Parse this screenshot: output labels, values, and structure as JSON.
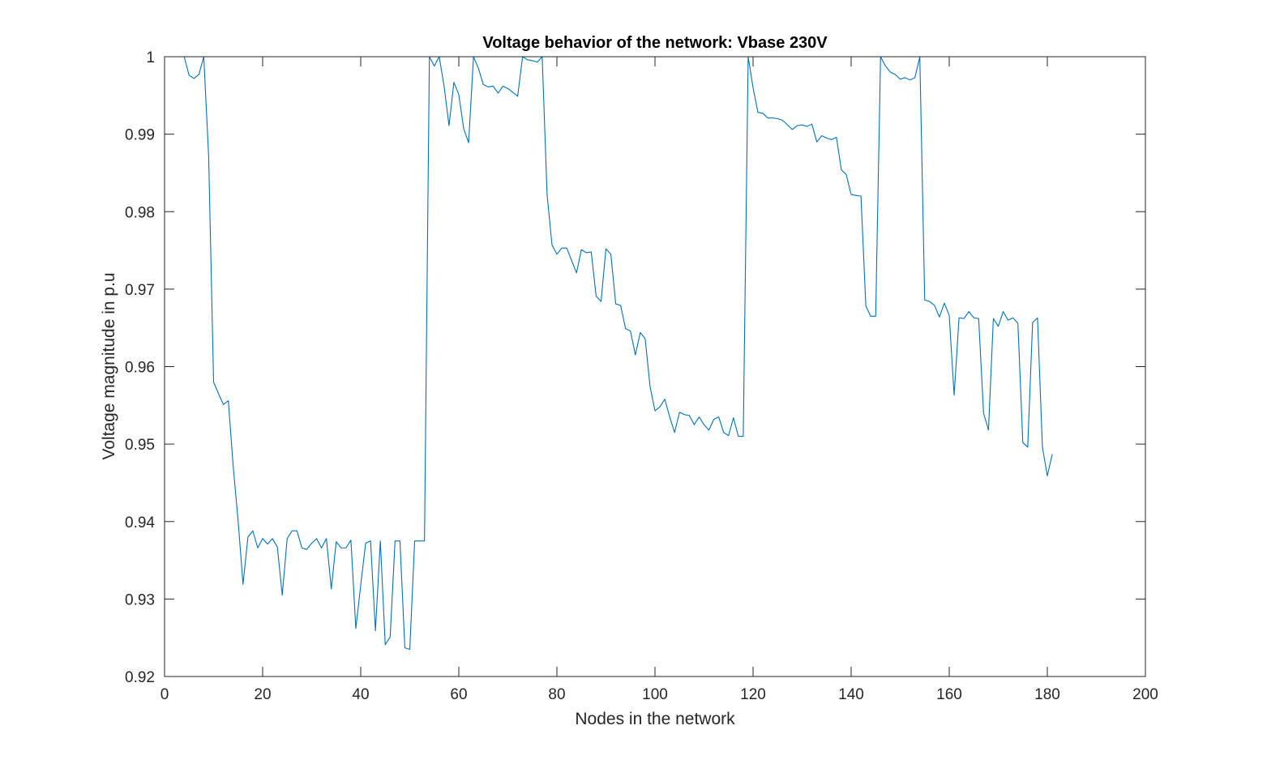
{
  "chart_data": {
    "type": "line",
    "title": "Voltage behavior of the network: Vbase 230V",
    "xlabel": "Nodes in the network",
    "ylabel": "Voltage magnitude in p.u",
    "xlim": [
      0,
      200
    ],
    "ylim": [
      0.92,
      1.0
    ],
    "xticks": [
      0,
      20,
      40,
      60,
      80,
      100,
      120,
      140,
      160,
      180,
      200
    ],
    "xtick_labels": [
      "0",
      "20",
      "40",
      "60",
      "80",
      "100",
      "120",
      "140",
      "160",
      "180",
      "200"
    ],
    "yticks": [
      0.92,
      0.93,
      0.94,
      0.95,
      0.96,
      0.97,
      0.98,
      0.99,
      1.0
    ],
    "ytick_labels": [
      "0.92",
      "0.93",
      "0.94",
      "0.95",
      "0.96",
      "0.97",
      "0.98",
      "0.99",
      "1"
    ],
    "grid": false,
    "line_color": "#0072BD",
    "axis_color": "#262626",
    "series": [
      {
        "x": [
          1,
          2,
          3,
          4,
          5,
          6,
          7,
          8,
          9,
          10,
          11,
          12,
          13,
          14,
          15,
          16,
          17,
          18,
          19,
          20,
          21,
          22,
          23,
          24,
          25,
          26,
          27,
          28,
          29,
          30,
          31,
          32,
          33,
          34,
          35,
          36,
          37,
          38,
          39,
          40,
          41,
          42,
          43,
          44,
          45,
          46,
          47,
          48,
          49,
          50,
          51,
          52,
          53,
          54,
          55,
          56,
          57,
          58,
          59,
          60,
          61,
          62,
          63,
          64,
          65,
          66,
          67,
          68,
          69,
          70,
          71,
          72,
          73,
          74,
          75,
          76,
          77,
          78,
          79,
          80,
          81,
          82,
          83,
          84,
          85,
          86,
          87,
          88,
          89,
          90,
          91,
          92,
          93,
          94,
          95,
          96,
          97,
          98,
          99,
          100,
          101,
          102,
          103,
          104,
          105,
          106,
          107,
          108,
          109,
          110,
          111,
          112,
          113,
          114,
          115,
          116,
          117,
          118,
          119,
          120,
          121,
          122,
          123,
          124,
          125,
          126,
          127,
          128,
          129,
          130,
          131,
          132,
          133,
          134,
          135,
          136,
          137,
          138,
          139,
          140,
          141,
          142,
          143,
          144,
          145,
          146,
          147,
          148,
          149,
          150,
          151,
          152,
          153,
          154,
          155,
          156,
          157,
          158,
          159,
          160,
          161,
          162,
          163,
          164,
          165,
          166,
          167,
          168,
          169,
          170,
          171,
          172,
          173,
          174,
          175,
          176,
          177,
          178,
          179,
          180,
          181
        ],
        "y": [
          1.0,
          1.0,
          1.0,
          1.0,
          0.9976,
          0.9972,
          0.9977,
          1.0,
          0.987,
          0.958,
          0.9565,
          0.9551,
          0.9556,
          0.9471,
          0.9401,
          0.9319,
          0.938,
          0.9388,
          0.9366,
          0.9378,
          0.9371,
          0.9378,
          0.9367,
          0.9305,
          0.9378,
          0.9388,
          0.9388,
          0.9366,
          0.9364,
          0.9372,
          0.9378,
          0.9366,
          0.9378,
          0.9313,
          0.9374,
          0.9366,
          0.9366,
          0.9376,
          0.9262,
          0.9318,
          0.9372,
          0.9375,
          0.9259,
          0.9375,
          0.9241,
          0.9251,
          0.9375,
          0.9375,
          0.9237,
          0.9235,
          0.9375,
          0.9375,
          0.9375,
          1.0,
          0.9988,
          1.0,
          0.9962,
          0.9911,
          0.9967,
          0.9951,
          0.9907,
          0.9889,
          1.0,
          0.9985,
          0.9964,
          0.9961,
          0.9962,
          0.9953,
          0.9962,
          0.9959,
          0.9954,
          0.9949,
          1.0,
          0.9996,
          0.9995,
          0.9993,
          1.0,
          0.9822,
          0.9757,
          0.9745,
          0.9753,
          0.9753,
          0.9737,
          0.9721,
          0.9751,
          0.9747,
          0.9748,
          0.9691,
          0.9684,
          0.9752,
          0.9745,
          0.9681,
          0.9679,
          0.9649,
          0.9646,
          0.9615,
          0.9644,
          0.9636,
          0.9574,
          0.9543,
          0.9548,
          0.9558,
          0.9535,
          0.9515,
          0.9541,
          0.9538,
          0.9537,
          0.9525,
          0.9535,
          0.9525,
          0.9518,
          0.9532,
          0.9535,
          0.9515,
          0.9511,
          0.9534,
          0.951,
          0.951,
          1.0,
          0.996,
          0.9928,
          0.9927,
          0.9921,
          0.9921,
          0.992,
          0.9918,
          0.9912,
          0.9906,
          0.9911,
          0.9912,
          0.991,
          0.9913,
          0.989,
          0.9898,
          0.9895,
          0.9893,
          0.9896,
          0.9854,
          0.9848,
          0.9822,
          0.9821,
          0.982,
          0.9678,
          0.9665,
          0.9665,
          1.0,
          0.9988,
          0.998,
          0.9977,
          0.9971,
          0.9973,
          0.997,
          0.9973,
          1.0,
          0.9686,
          0.9684,
          0.9679,
          0.9664,
          0.9682,
          0.9666,
          0.9563,
          0.9663,
          0.9662,
          0.9671,
          0.9663,
          0.9662,
          0.954,
          0.9518,
          0.9662,
          0.9652,
          0.9671,
          0.966,
          0.9663,
          0.9656,
          0.9502,
          0.9496,
          0.9657,
          0.9663,
          0.9496,
          0.9459,
          0.9487
        ]
      }
    ]
  }
}
